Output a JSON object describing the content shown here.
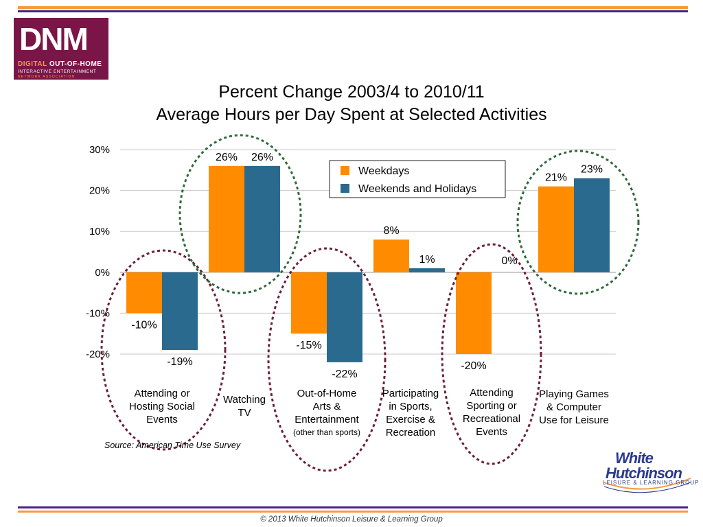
{
  "logo": {
    "line1a": "DIGITAL",
    "line1b": "OUT-OF-HOME",
    "line2": "INTERACTIVE ENTERTAINMENT",
    "line3": "NETWORK ASSOCIATION"
  },
  "footer": "© 2013 White Hutchinson Leisure & Learning Group",
  "source": "Source: American Time Use Survey",
  "wh_logo": {
    "line1": "White",
    "line2": "Hutchinson",
    "line3": "LEISURE & LEARNING GROUP"
  },
  "colors": {
    "weekdays": "#ff8c00",
    "weekends": "#2b6a8f",
    "green_ellipse": "#2f6a3a",
    "maroon_ellipse": "#6b1f3a",
    "purple_rule": "#4b1f86",
    "orange_rule": "#f59a3c"
  },
  "chart_data": {
    "type": "bar",
    "title_lines": [
      "Percent Change 2003/4 to 2010/11",
      "Average Hours per Day Spent at Selected Activities"
    ],
    "ylim": [
      -20,
      30
    ],
    "yticks": [
      "30%",
      "20%",
      "10%",
      "0%",
      "-10%",
      "-20%"
    ],
    "ytick_values": [
      30,
      20,
      10,
      0,
      -10,
      -20
    ],
    "grid": true,
    "legend_position": "top-center",
    "categories": [
      {
        "lines": [
          "Attending or",
          "Hosting Social",
          "Events"
        ]
      },
      {
        "lines": [
          "Watching",
          "TV"
        ]
      },
      {
        "lines": [
          "Out-of-Home",
          "Arts &",
          "Entertainment"
        ],
        "note": "(other than sports)"
      },
      {
        "lines": [
          "Participating",
          "in Sports,",
          "Exercise &",
          "Recreation"
        ]
      },
      {
        "lines": [
          "Attending",
          "Sporting or",
          "Recreational",
          "Events"
        ]
      },
      {
        "lines": [
          "Playing Games",
          "& Computer",
          "Use for Leisure"
        ]
      }
    ],
    "series": [
      {
        "name": "Weekdays",
        "values": [
          -10,
          26,
          -15,
          8,
          -20,
          21
        ],
        "labels": [
          "-10%",
          "26%",
          "-15%",
          "8%",
          "-20%",
          "21%"
        ]
      },
      {
        "name": "Weekends and Holidays",
        "values": [
          -19,
          26,
          -22,
          1,
          0,
          23
        ],
        "labels": [
          "-19%",
          "26%",
          "-22%",
          "1%",
          "0%",
          "23%"
        ]
      }
    ],
    "highlight_ellipses": [
      {
        "category": 0,
        "color": "maroon"
      },
      {
        "category": 1,
        "color": "green"
      },
      {
        "category": 2,
        "color": "maroon"
      },
      {
        "category": 4,
        "color": "maroon"
      },
      {
        "category": 5,
        "color": "green"
      }
    ]
  }
}
